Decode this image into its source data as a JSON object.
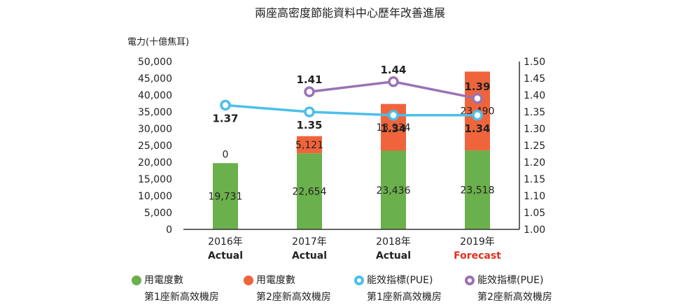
{
  "chart_data": {
    "type": "bar",
    "title": "兩座高密度節能資料中心歷年改善進展",
    "ylabel": "電力(十億焦耳)",
    "categories": [
      "2016年",
      "2017年",
      "2018年",
      "2019年"
    ],
    "category_sublabels": [
      "Actual",
      "Actual",
      "Actual",
      "Forecast"
    ],
    "ylim": [
      0,
      50000
    ],
    "y_ticks": [
      "0",
      "5,000",
      "10,000",
      "15,000",
      "20,000",
      "25,000",
      "30,000",
      "35,000",
      "40,000",
      "45,000",
      "50,000"
    ],
    "y2lim": [
      1.0,
      1.5
    ],
    "y2_ticks": [
      "1.00",
      "1.05",
      "1.10",
      "1.15",
      "1.20",
      "1.25",
      "1.30",
      "1.35",
      "1.40",
      "1.45",
      "1.50"
    ],
    "series": [
      {
        "name": "用電度數 第1座新高效機房",
        "kind": "bar",
        "values": [
          19731,
          22654,
          23436,
          23518
        ],
        "labels": [
          "19,731",
          "22,654",
          "23,436",
          "23,518"
        ]
      },
      {
        "name": "用電度數 第2座新高效機房",
        "kind": "bar",
        "values": [
          0,
          5121,
          13934,
          23490
        ],
        "labels": [
          "0",
          "5,121",
          "13,934",
          "23,490"
        ]
      },
      {
        "name": "能效指標(PUE) 第1座新高效機房",
        "kind": "line",
        "axis": "right",
        "values": [
          1.37,
          1.35,
          1.34,
          1.34
        ],
        "labels": [
          "1.37",
          "1.35",
          "1.34",
          "1.34"
        ]
      },
      {
        "name": "能效指標(PUE) 第2座新高效機房",
        "kind": "line",
        "axis": "right",
        "values": [
          null,
          1.41,
          1.44,
          1.39
        ],
        "labels": [
          "",
          "1.41",
          "1.44",
          "1.39"
        ]
      }
    ]
  },
  "legend": [
    {
      "line1": "用電度數",
      "line2": "第1座新高效機房",
      "color": "#6ab04c",
      "style": "filled"
    },
    {
      "line1": "用電度數",
      "line2": "第2座新高效機房",
      "color": "#f0643c",
      "style": "filled"
    },
    {
      "line1": "能效指標(PUE)",
      "line2": "第1座新高效機房",
      "color": "#4bbfea",
      "style": "ring"
    },
    {
      "line1": "能效指標(PUE)",
      "line2": "第2座新高效機房",
      "color": "#9b72b5",
      "style": "ring"
    }
  ],
  "colors": {
    "bar1": "#6ab04c",
    "bar2": "#f0643c",
    "line1": "#4bbfea",
    "line2": "#9b72b5",
    "forecast": "#e0301e",
    "axis": "#333333"
  }
}
